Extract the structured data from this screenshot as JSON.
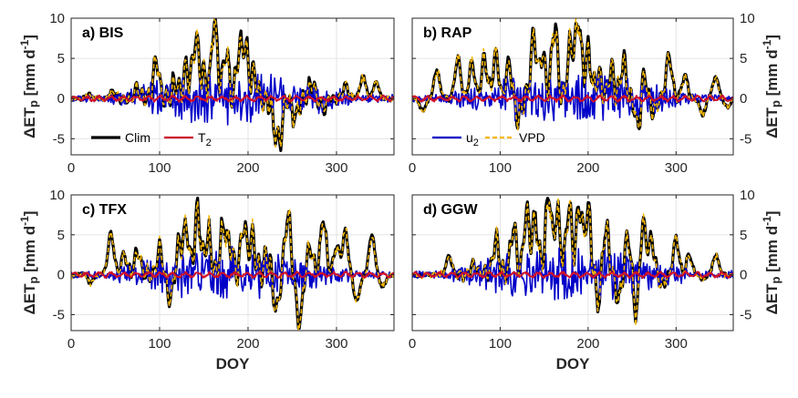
{
  "chart_data": [
    {
      "type": "line",
      "title": "a) BIS",
      "xlabel": "",
      "ylabel": "ΔET_p [mm d^-1]",
      "xlim": [
        0,
        365
      ],
      "ylim": [
        -7,
        10
      ],
      "xticks": [
        0,
        100,
        200,
        300
      ],
      "yticks": [
        -5,
        0,
        5,
        10
      ],
      "grid": true,
      "legend": {
        "placement": "bottom-left",
        "entries": [
          "Clim",
          "T2"
        ]
      },
      "series_keys": [
        "Clim",
        "u2",
        "VPD",
        "T2"
      ],
      "peaks": [
        [
          20,
          0.5
        ],
        [
          47,
          1.0
        ],
        [
          75,
          1.3
        ],
        [
          96,
          5.0
        ],
        [
          118,
          1.8
        ],
        [
          130,
          3.8
        ],
        [
          141,
          7.7
        ],
        [
          150,
          3.0
        ],
        [
          162,
          9.9
        ],
        [
          175,
          5.8
        ],
        [
          190,
          5.7
        ],
        [
          197,
          6.0
        ],
        [
          207,
          3.3
        ],
        [
          230,
          -3.0
        ],
        [
          236,
          -4.8
        ],
        [
          253,
          -2.5
        ],
        [
          272,
          2.0
        ],
        [
          285,
          -1.3
        ],
        [
          310,
          1.8
        ],
        [
          330,
          2.8
        ],
        [
          345,
          2.0
        ]
      ],
      "seed": 11
    },
    {
      "type": "line",
      "title": "b) RAP",
      "xlabel": "",
      "ylabel": "ΔET_p [mm d^-1]",
      "xlim": [
        0,
        365
      ],
      "ylim": [
        -7,
        10
      ],
      "xticks": [
        0,
        100,
        200,
        300
      ],
      "yticks": [
        -5,
        0,
        5,
        10
      ],
      "grid": true,
      "legend": {
        "placement": "bottom-left",
        "entries": [
          "u2",
          "VPD"
        ]
      },
      "series_keys": [
        "Clim",
        "u2",
        "VPD",
        "T2"
      ],
      "peaks": [
        [
          12,
          -1.5
        ],
        [
          28,
          3.6
        ],
        [
          52,
          5.0
        ],
        [
          68,
          4.4
        ],
        [
          82,
          5.0
        ],
        [
          95,
          5.5
        ],
        [
          110,
          4.5
        ],
        [
          120,
          -2.5
        ],
        [
          138,
          8.0
        ],
        [
          148,
          5.5
        ],
        [
          162,
          9.5
        ],
        [
          180,
          6.5
        ],
        [
          189,
          9.9
        ],
        [
          200,
          6.0
        ],
        [
          212,
          3.0
        ],
        [
          226,
          3.5
        ],
        [
          240,
          4.5
        ],
        [
          258,
          -5.3
        ],
        [
          262,
          4.5
        ],
        [
          275,
          -1.5
        ],
        [
          292,
          5.5
        ],
        [
          310,
          3.0
        ],
        [
          330,
          -2.0
        ],
        [
          345,
          2.8
        ],
        [
          358,
          -1.0
        ]
      ],
      "seed": 23
    },
    {
      "type": "line",
      "title": "c) TFX",
      "xlabel": "DOY",
      "ylabel": "ΔET_p [mm d^-1]",
      "xlim": [
        0,
        365
      ],
      "ylim": [
        -7,
        10
      ],
      "xticks": [
        0,
        100,
        200,
        300
      ],
      "yticks": [
        -5,
        0,
        5,
        10
      ],
      "grid": true,
      "legend": null,
      "series_keys": [
        "Clim",
        "u2",
        "VPD",
        "T2"
      ],
      "peaks": [
        [
          22,
          -1.0
        ],
        [
          45,
          5.2
        ],
        [
          60,
          2.5
        ],
        [
          75,
          3.0
        ],
        [
          100,
          3.2
        ],
        [
          112,
          -3.0
        ],
        [
          122,
          3.7
        ],
        [
          130,
          5.8
        ],
        [
          143,
          8.3
        ],
        [
          155,
          5.0
        ],
        [
          172,
          6.0
        ],
        [
          180,
          3.6
        ],
        [
          195,
          6.2
        ],
        [
          205,
          4.5
        ],
        [
          222,
          2.5
        ],
        [
          232,
          -4.5
        ],
        [
          245,
          7.6
        ],
        [
          258,
          -6.0
        ],
        [
          270,
          3.5
        ],
        [
          285,
          7.0
        ],
        [
          300,
          3.5
        ],
        [
          310,
          5.2
        ],
        [
          323,
          -3.5
        ],
        [
          340,
          5.0
        ],
        [
          352,
          -1.5
        ]
      ],
      "seed": 37
    },
    {
      "type": "line",
      "title": "d) GGW",
      "xlabel": "DOY",
      "ylabel": "ΔET_p [mm d^-1]",
      "xlim": [
        0,
        365
      ],
      "ylim": [
        -7,
        10
      ],
      "xticks": [
        0,
        100,
        200,
        300
      ],
      "yticks": [
        -5,
        0,
        5,
        10
      ],
      "grid": true,
      "legend": null,
      "series_keys": [
        "Clim",
        "u2",
        "VPD",
        "T2"
      ],
      "peaks": [
        [
          42,
          2.3
        ],
        [
          70,
          1.3
        ],
        [
          95,
          4.3
        ],
        [
          115,
          6.0
        ],
        [
          130,
          8.0
        ],
        [
          140,
          7.5
        ],
        [
          155,
          10.0
        ],
        [
          165,
          7.5
        ],
        [
          178,
          8.5
        ],
        [
          190,
          9.0
        ],
        [
          200,
          8.0
        ],
        [
          212,
          -3.5
        ],
        [
          220,
          6.0
        ],
        [
          235,
          -3.0
        ],
        [
          245,
          5.0
        ],
        [
          255,
          -5.3
        ],
        [
          262,
          7.2
        ],
        [
          272,
          4.5
        ],
        [
          285,
          -1.5
        ],
        [
          300,
          4.5
        ],
        [
          315,
          2.5
        ],
        [
          330,
          -0.5
        ],
        [
          345,
          2.5
        ]
      ],
      "seed": 53
    }
  ],
  "legend_labels": {
    "clim": "Clim",
    "t2_base": "T",
    "t2_sub": "2",
    "u2_base": "u",
    "u2_sub": "2",
    "vpd": "VPD"
  },
  "colors": {
    "clim": "#000000",
    "u2": "#0000c8",
    "vpd": "#f5b700",
    "t2": "#d0102a",
    "grid": "#e4e4e4",
    "axis": "#262626"
  }
}
